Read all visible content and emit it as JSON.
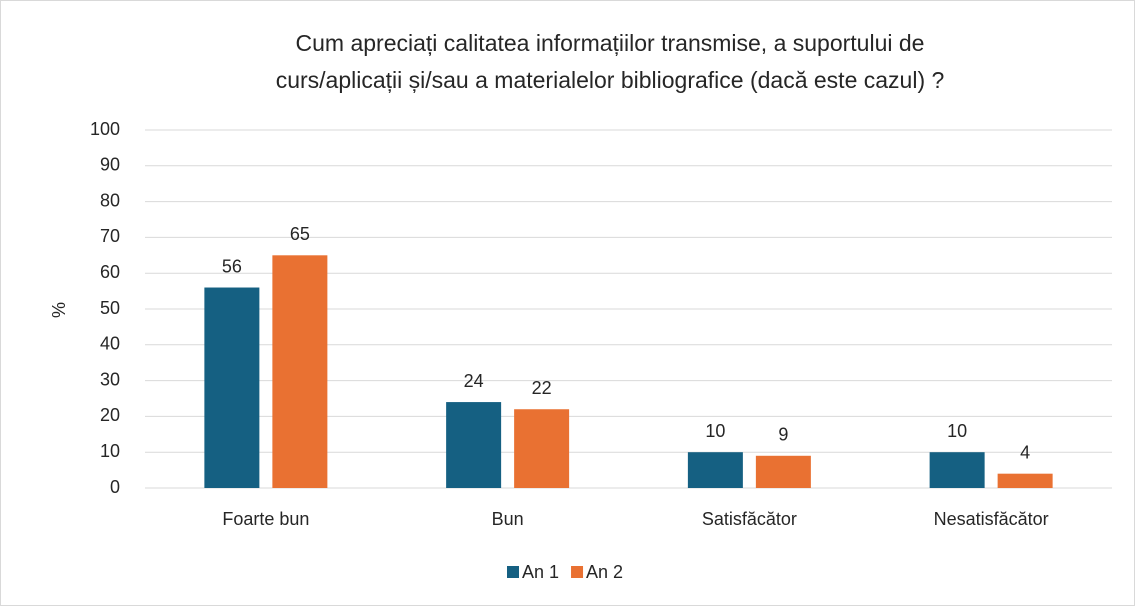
{
  "chart_data": {
    "type": "bar",
    "title": [
      "Cum apreciați calitatea informațiilor transmise, a suportului de",
      "curs/aplicații și/sau a materialelor bibliografice (dacă este cazul) ?"
    ],
    "ylabel": "%",
    "categories": [
      "Foarte bun",
      "Bun",
      "Satisfăcător",
      "Nesatisfăcător"
    ],
    "series": [
      {
        "name": "An 1",
        "color": "#156082",
        "values": [
          56,
          24,
          10,
          10
        ]
      },
      {
        "name": "An 2",
        "color": "#e97132",
        "values": [
          65,
          22,
          9,
          4
        ]
      }
    ],
    "ylim": [
      0,
      100
    ],
    "yticks": [
      0,
      10,
      20,
      30,
      40,
      50,
      60,
      70,
      80,
      90,
      100
    ],
    "grid": true,
    "legend": "bottom"
  }
}
